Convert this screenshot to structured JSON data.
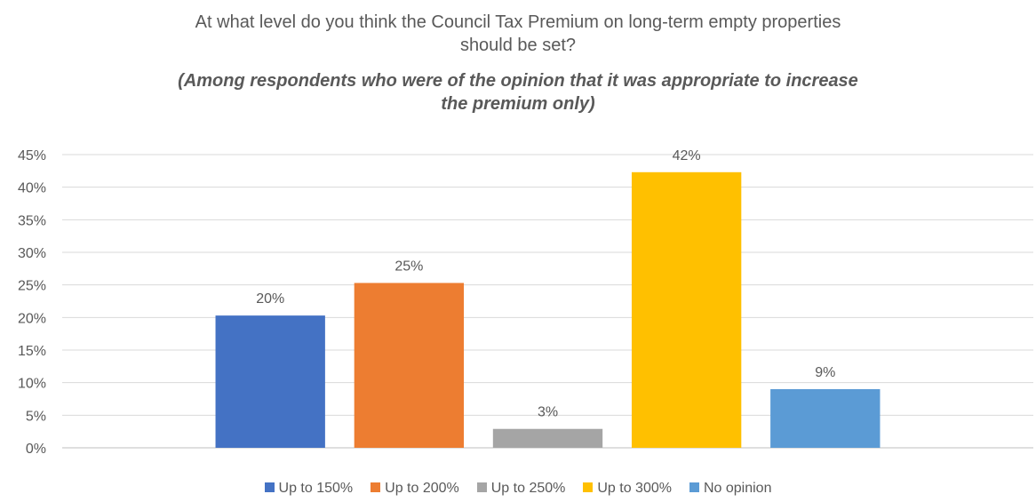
{
  "chart_data": {
    "type": "bar",
    "title": "At what level do you think the Council Tax Premium on long-term empty properties should be set?",
    "title_lines": [
      "At what level do you think the Council Tax Premium on long-term empty properties",
      "should be set?"
    ],
    "subtitle": "(Among respondents who were of the opinion that it was appropriate to increase the premium only)",
    "subtitle_lines": [
      "(Among respondents who were of the opinion that it was appropriate to increase",
      "the premium only)"
    ],
    "series": [
      {
        "name": "Up to 150%",
        "value": 20.3,
        "label": "20%",
        "color": "#4472C4"
      },
      {
        "name": "Up to 200%",
        "value": 25.3,
        "label": "25%",
        "color": "#ED7D31"
      },
      {
        "name": "Up to 250%",
        "value": 2.9,
        "label": "3%",
        "color": "#A5A5A5"
      },
      {
        "name": "Up to 300%",
        "value": 42.3,
        "label": "42%",
        "color": "#FFC000"
      },
      {
        "name": "No opinion",
        "value": 9.0,
        "label": "9%",
        "color": "#5B9BD5"
      }
    ],
    "ylim": [
      0,
      45
    ],
    "yticks": [
      0,
      5,
      10,
      15,
      20,
      25,
      30,
      35,
      40,
      45
    ],
    "ytick_labels": [
      "0%",
      "5%",
      "10%",
      "15%",
      "20%",
      "25%",
      "30%",
      "35%",
      "40%",
      "45%"
    ],
    "grid": true,
    "legend": "bottom"
  }
}
